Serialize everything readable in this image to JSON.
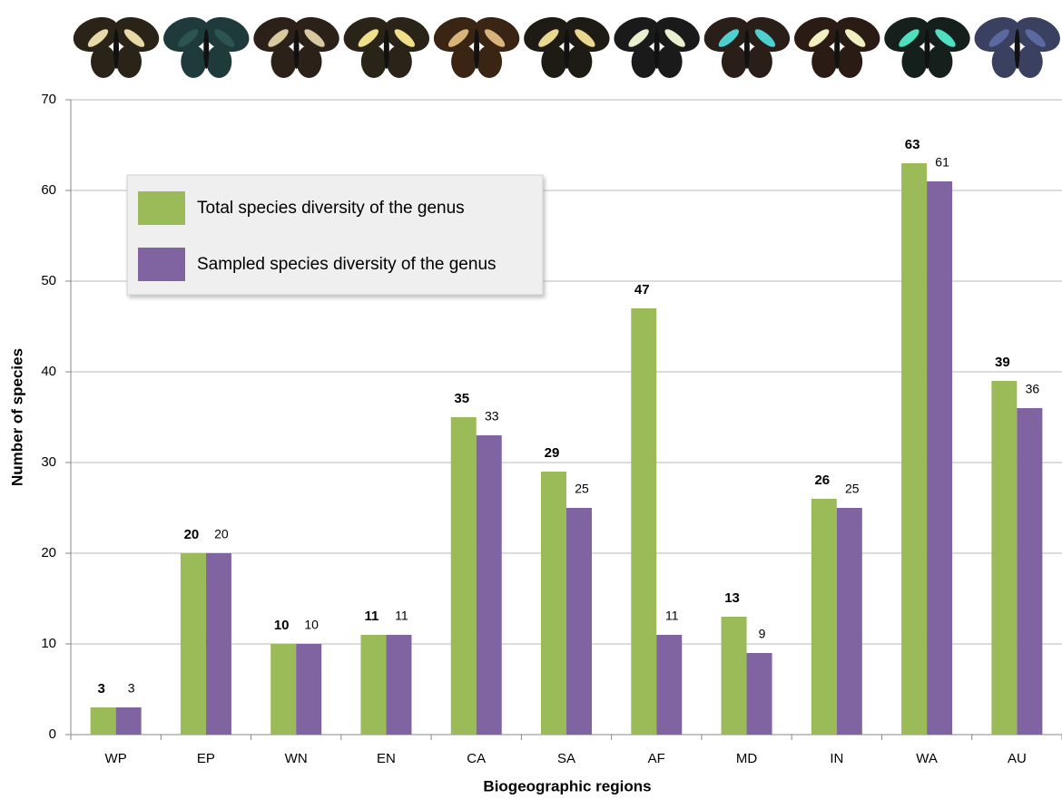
{
  "chart_data": {
    "type": "bar",
    "x_label": "Biogeographic regions",
    "y_label": "Number of species",
    "categories": [
      "WP",
      "EP",
      "WN",
      "EN",
      "CA",
      "SA",
      "AF",
      "MD",
      "IN",
      "WA",
      "AU"
    ],
    "series": [
      {
        "name": "Total species diversity of the genus",
        "color": "#9bbb59",
        "values": [
          3,
          20,
          10,
          11,
          35,
          29,
          47,
          13,
          26,
          63,
          39
        ]
      },
      {
        "name": "Sampled species diversity of the genus",
        "color": "#8064a2",
        "values": [
          3,
          20,
          10,
          11,
          33,
          25,
          11,
          9,
          25,
          61,
          36
        ]
      }
    ],
    "ylim": [
      0,
      70
    ],
    "yticks": [
      0,
      10,
      20,
      30,
      40,
      50,
      60,
      70
    ],
    "grid": true,
    "legend": "upper left"
  }
}
